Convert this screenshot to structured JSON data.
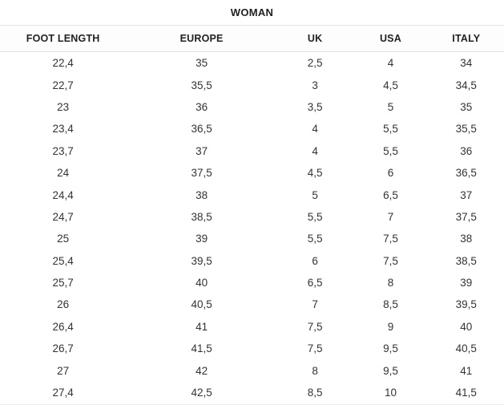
{
  "title": "WOMAN",
  "table": {
    "columns": [
      "FOOT LENGTH",
      "EUROPE",
      "UK",
      "USA",
      "ITALY"
    ],
    "rows": [
      [
        "22,4",
        "35",
        "2,5",
        "4",
        "34"
      ],
      [
        "22,7",
        "35,5",
        "3",
        "4,5",
        "34,5"
      ],
      [
        "23",
        "36",
        "3,5",
        "5",
        "35"
      ],
      [
        "23,4",
        "36,5",
        "4",
        "5,5",
        "35,5"
      ],
      [
        "23,7",
        "37",
        "4",
        "5,5",
        "36"
      ],
      [
        "24",
        "37,5",
        "4,5",
        "6",
        "36,5"
      ],
      [
        "24,4",
        "38",
        "5",
        "6,5",
        "37"
      ],
      [
        "24,7",
        "38,5",
        "5,5",
        "7",
        "37,5"
      ],
      [
        "25",
        "39",
        "5,5",
        "7,5",
        "38"
      ],
      [
        "25,4",
        "39,5",
        "6",
        "7,5",
        "38,5"
      ],
      [
        "25,7",
        "40",
        "6,5",
        "8",
        "39"
      ],
      [
        "26",
        "40,5",
        "7",
        "8,5",
        "39,5"
      ],
      [
        "26,4",
        "41",
        "7,5",
        "9",
        "40"
      ],
      [
        "26,7",
        "41,5",
        "7,5",
        "9,5",
        "40,5"
      ],
      [
        "27",
        "42",
        "8",
        "9,5",
        "41"
      ],
      [
        "27,4",
        "42,5",
        "8,5",
        "10",
        "41,5"
      ]
    ]
  },
  "colors": {
    "text": "#333333",
    "heading_text": "#222222",
    "border": "#e3e3e3",
    "background": "#ffffff"
  }
}
